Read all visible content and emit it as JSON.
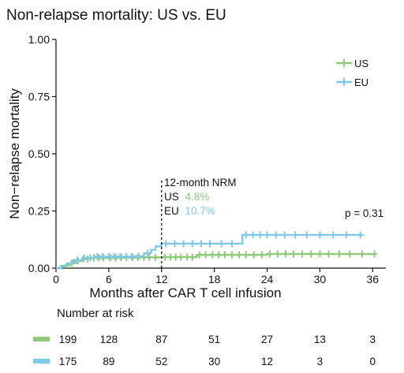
{
  "chart_data": {
    "type": "line",
    "title": "Non-relapse mortality: US vs. EU",
    "xlabel": "Months after CAR T cell infusion",
    "ylabel": "Non−relapse mortality",
    "xlim": [
      0,
      37.5
    ],
    "ylim": [
      0,
      1.0
    ],
    "xticks": [
      0,
      6,
      12,
      18,
      24,
      30,
      36
    ],
    "yticks": [
      0,
      0.25,
      0.5,
      0.75,
      1.0
    ],
    "ytick_labels": [
      "0.00",
      "0.25",
      "0.50",
      "0.75",
      "1.00"
    ],
    "grid": false,
    "legend_position": "top-right",
    "series": [
      {
        "name": "US",
        "color": "#8ec97a",
        "steps": [
          [
            0,
            0
          ],
          [
            0.5,
            0.005
          ],
          [
            1.0,
            0.012
          ],
          [
            1.5,
            0.022
          ],
          [
            2.2,
            0.032
          ],
          [
            3.0,
            0.04
          ],
          [
            4.0,
            0.045
          ],
          [
            6.0,
            0.046
          ],
          [
            9.0,
            0.047
          ],
          [
            12.0,
            0.048
          ],
          [
            16.0,
            0.058
          ],
          [
            24.0,
            0.062
          ],
          [
            36.5,
            0.062
          ]
        ],
        "censor_marks": [
          1.8,
          2.5,
          3.1,
          3.6,
          4.3,
          4.9,
          5.4,
          6.2,
          6.8,
          7.4,
          8.0,
          8.7,
          9.3,
          10.0,
          10.6,
          11.3,
          12.4,
          13.0,
          13.6,
          14.2,
          14.9,
          15.5,
          16.3,
          17.0,
          17.8,
          18.5,
          19.2,
          20.0,
          20.8,
          21.6,
          22.5,
          23.4,
          24.3,
          25.2,
          26.1,
          27.0,
          28.0,
          29.0,
          30.0,
          31.0,
          32.2,
          33.4,
          34.8,
          36.2
        ]
      },
      {
        "name": "EU",
        "color": "#7ec8e8",
        "steps": [
          [
            0,
            0
          ],
          [
            0.6,
            0.01
          ],
          [
            1.2,
            0.02
          ],
          [
            2.0,
            0.035
          ],
          [
            3.0,
            0.045
          ],
          [
            4.5,
            0.05
          ],
          [
            9.0,
            0.052
          ],
          [
            10.0,
            0.065
          ],
          [
            10.8,
            0.08
          ],
          [
            11.3,
            0.095
          ],
          [
            12.0,
            0.107
          ],
          [
            20.8,
            0.107
          ],
          [
            21.2,
            0.145
          ],
          [
            35.0,
            0.145
          ]
        ],
        "censor_marks": [
          2.4,
          3.2,
          3.9,
          4.7,
          5.3,
          6.0,
          6.6,
          7.3,
          8.0,
          8.6,
          9.4,
          10.4,
          12.5,
          13.5,
          14.5,
          15.5,
          16.5,
          17.5,
          18.8,
          20.0,
          21.6,
          22.4,
          23.2,
          24.0,
          25.0,
          26.0,
          27.2,
          28.5,
          30.0,
          31.5,
          33.0,
          34.6
        ]
      }
    ],
    "annotations": {
      "vline_x": 12,
      "vline_ymax": 0.385,
      "label": "12-month NRM",
      "us_label": "US",
      "us_value": "4.8%",
      "eu_label": "EU",
      "eu_value": "10.7%"
    },
    "p_value": "p = 0.31",
    "risk_table": {
      "title": "Number at risk",
      "timepoints": [
        0,
        6,
        12,
        18,
        24,
        30,
        36
      ],
      "rows": [
        {
          "name": "US",
          "color": "#8ec97a",
          "values": [
            "199",
            "128",
            "87",
            "51",
            "27",
            "13",
            "3"
          ]
        },
        {
          "name": "EU",
          "color": "#7ec8e8",
          "values": [
            "175",
            "89",
            "52",
            "30",
            "12",
            "3",
            "0"
          ]
        }
      ]
    }
  }
}
